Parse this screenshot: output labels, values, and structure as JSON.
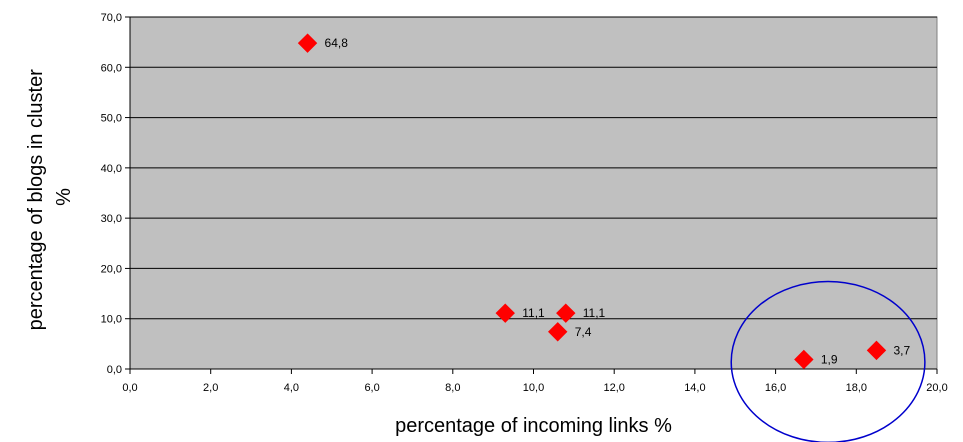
{
  "chart_data": {
    "type": "scatter",
    "xlabel": "percentage of incoming links %",
    "ylabel": [
      "percentage of blogs in cluster",
      "%"
    ],
    "xlim": [
      0,
      20
    ],
    "ylim": [
      0,
      70
    ],
    "x_ticks": [
      "0,0",
      "2,0",
      "4,0",
      "6,0",
      "8,0",
      "10,0",
      "12,0",
      "14,0",
      "16,0",
      "18,0",
      "20,0"
    ],
    "y_ticks": [
      "0,0",
      "10,0",
      "20,0",
      "30,0",
      "40,0",
      "50,0",
      "60,0",
      "70,0"
    ],
    "grid": "horizontal",
    "legend": "none",
    "series": [
      {
        "marker": "diamond",
        "points": [
          {
            "x": 4.4,
            "y": 64.8,
            "label": "64,8"
          },
          {
            "x": 9.3,
            "y": 11.1,
            "label": "11,1"
          },
          {
            "x": 10.8,
            "y": 11.1,
            "label": "11,1"
          },
          {
            "x": 10.6,
            "y": 7.4,
            "label": "7,4"
          },
          {
            "x": 16.7,
            "y": 1.9,
            "label": "1,9"
          },
          {
            "x": 18.5,
            "y": 3.7,
            "label": "3,7"
          }
        ]
      }
    ],
    "annotations": [
      {
        "type": "ellipse",
        "cx": 17.3,
        "cy": 1.4,
        "rx": 2.4,
        "ry": 16.0
      }
    ],
    "colors": {
      "plot_background": "#c0c0c0",
      "marker": "#ff0000",
      "gridline": "#000000",
      "annotation": "#0000cc"
    }
  }
}
